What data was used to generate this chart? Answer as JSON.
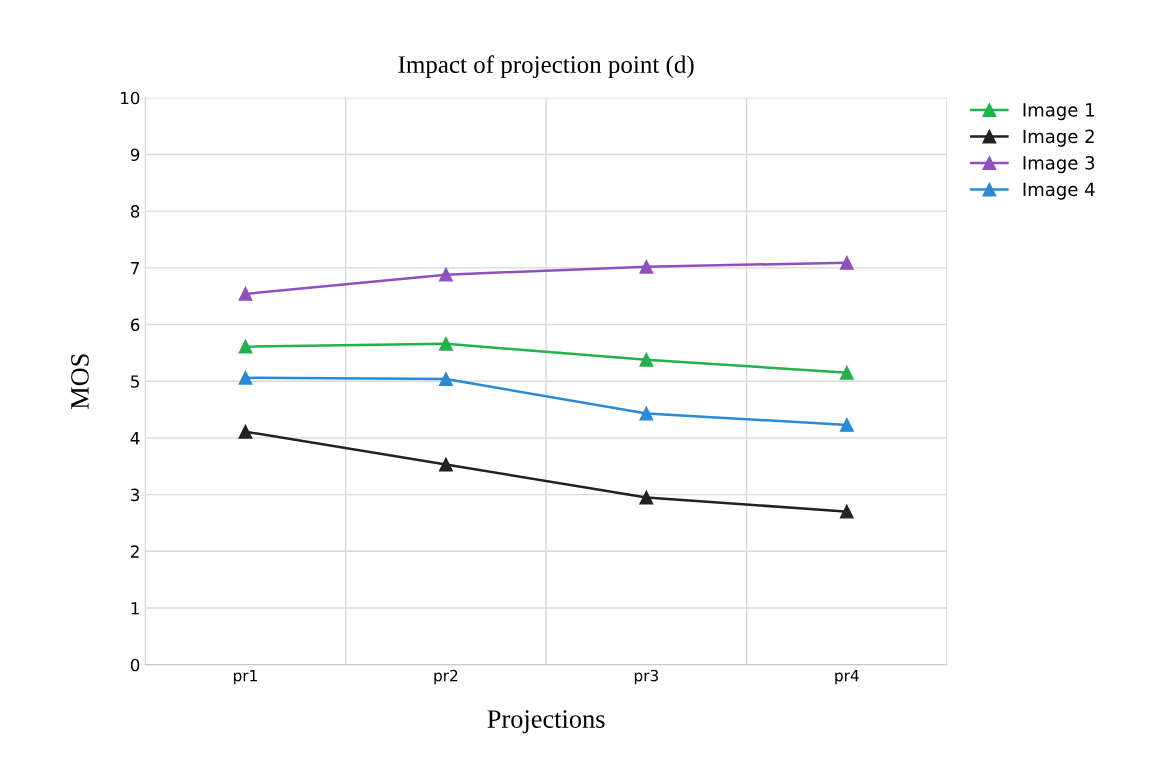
{
  "chart_data": {
    "type": "line",
    "title": "Impact of projection point (d)",
    "xlabel": "Projections",
    "ylabel": "MOS",
    "categories": [
      "pr1",
      "pr2",
      "pr3",
      "pr4"
    ],
    "series": [
      {
        "name": "Image 1",
        "color": "#22b14c",
        "values": [
          5.61,
          5.66,
          5.38,
          5.15
        ]
      },
      {
        "name": "Image 2",
        "color": "#222222",
        "values": [
          4.11,
          3.53,
          2.95,
          2.7
        ]
      },
      {
        "name": "Image 3",
        "color": "#9050c0",
        "values": [
          6.54,
          6.88,
          7.02,
          7.09
        ]
      },
      {
        "name": "Image 4",
        "color": "#2a8ad4",
        "values": [
          5.06,
          5.04,
          4.43,
          4.23
        ]
      }
    ],
    "ylim": [
      0,
      10
    ],
    "yticks": [
      0,
      1,
      2,
      3,
      4,
      5,
      6,
      7,
      8,
      9,
      10
    ],
    "grid": true,
    "legend": "right",
    "marker": "triangle",
    "line_style": "solid"
  }
}
